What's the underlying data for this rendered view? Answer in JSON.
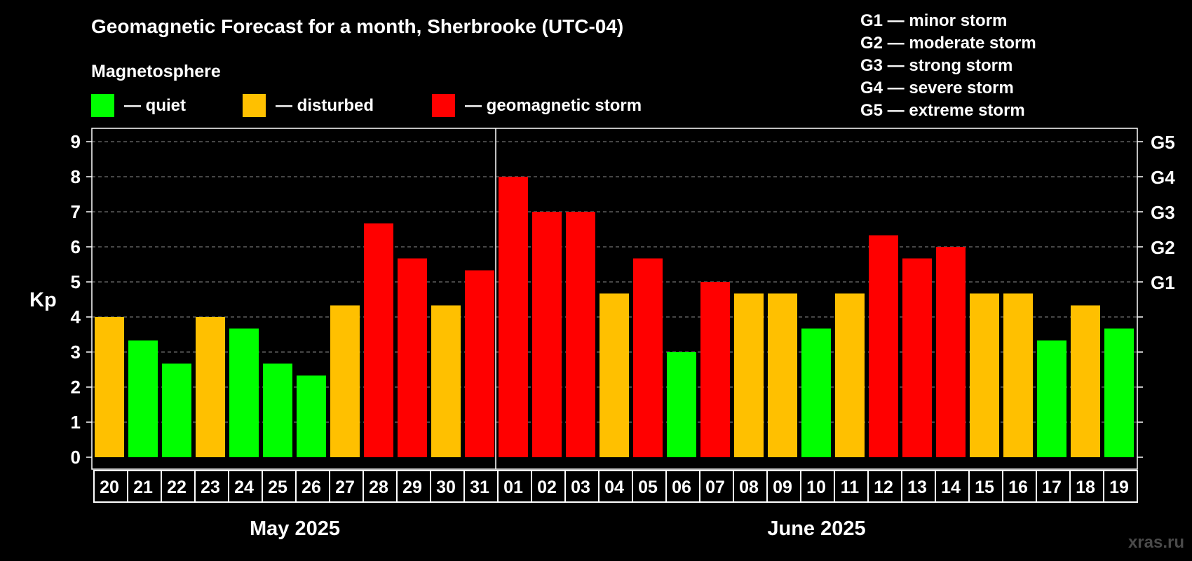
{
  "title": "Geomagnetic Forecast for a month, Sherbrooke (UTC-04)",
  "legend": {
    "heading": "Magnetosphere",
    "items": [
      {
        "key": "quiet",
        "label": "— quiet",
        "color": "#00ff00"
      },
      {
        "key": "disturbed",
        "label": "— disturbed",
        "color": "#ffc000"
      },
      {
        "key": "storm",
        "label": "— geomagnetic storm",
        "color": "#ff0000"
      }
    ]
  },
  "storm_levels": [
    "G1 — minor storm",
    "G2 — moderate storm",
    "G3 — strong storm",
    "G4 — severe storm",
    "G5 — extreme storm"
  ],
  "months": [
    "May 2025",
    "June 2025"
  ],
  "watermark": "xras.ru",
  "chart_data": {
    "type": "bar",
    "title": "Geomagnetic Forecast for a month, Sherbrooke (UTC-04)",
    "ylabel": "Kp",
    "xlabel": "",
    "ylim": [
      0,
      9
    ],
    "y_ticks": [
      "0",
      "1",
      "2",
      "3",
      "4",
      "5",
      "6",
      "7",
      "8",
      "9"
    ],
    "right_axis_ticks": [
      {
        "kp": 5,
        "label": "G1"
      },
      {
        "kp": 6,
        "label": "G2"
      },
      {
        "kp": 7,
        "label": "G3"
      },
      {
        "kp": 8,
        "label": "G4"
      },
      {
        "kp": 9,
        "label": "G5"
      }
    ],
    "grid": true,
    "month_split_after_index": 11,
    "categories": [
      "20",
      "21",
      "22",
      "23",
      "24",
      "25",
      "26",
      "27",
      "28",
      "29",
      "30",
      "31",
      "01",
      "02",
      "03",
      "04",
      "05",
      "06",
      "07",
      "08",
      "09",
      "10",
      "11",
      "12",
      "13",
      "14",
      "15",
      "16",
      "17",
      "18",
      "19"
    ],
    "values": [
      4.0,
      3.33,
      2.67,
      4.0,
      3.67,
      2.67,
      2.33,
      4.33,
      6.67,
      5.67,
      4.33,
      5.33,
      8.0,
      7.0,
      7.0,
      4.67,
      5.67,
      3.0,
      5.0,
      4.67,
      4.67,
      3.67,
      4.67,
      6.33,
      5.67,
      6.0,
      4.67,
      4.67,
      3.33,
      4.33,
      3.67
    ],
    "status": [
      "disturbed",
      "quiet",
      "quiet",
      "disturbed",
      "quiet",
      "quiet",
      "quiet",
      "disturbed",
      "storm",
      "storm",
      "disturbed",
      "storm",
      "storm",
      "storm",
      "storm",
      "disturbed",
      "storm",
      "quiet",
      "storm",
      "disturbed",
      "disturbed",
      "quiet",
      "disturbed",
      "storm",
      "storm",
      "storm",
      "disturbed",
      "disturbed",
      "quiet",
      "disturbed",
      "quiet"
    ]
  }
}
